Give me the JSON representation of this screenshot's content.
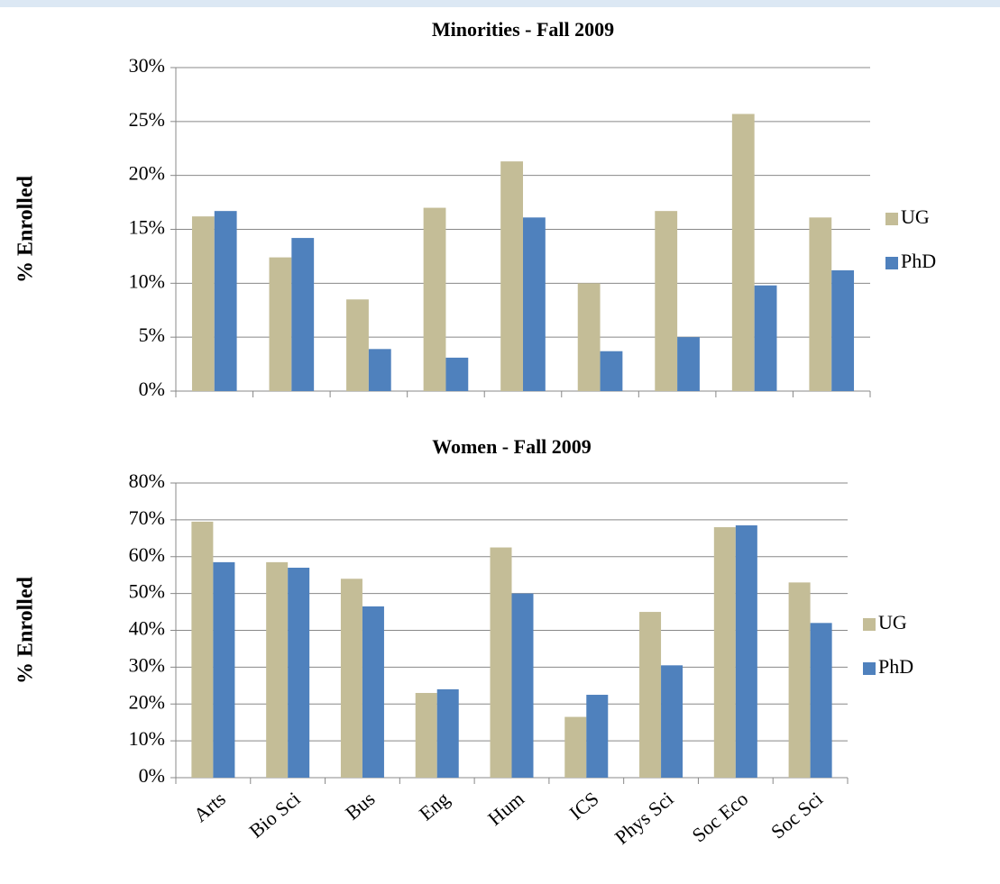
{
  "chart_data": [
    {
      "type": "bar",
      "title": "Minorities - Fall 2009",
      "y_label": "% Enrolled",
      "categories": [
        null,
        null,
        null,
        null,
        null,
        null,
        null,
        null,
        null
      ],
      "series": [
        {
          "name": "UG",
          "color": "#c4bd97",
          "values": [
            16.2,
            12.4,
            8.5,
            17,
            21.3,
            10,
            16.7,
            25.7,
            16.1
          ]
        },
        {
          "name": "PhD",
          "color": "#4f81bd",
          "values": [
            16.7,
            14.2,
            3.9,
            3.1,
            16.1,
            3.7,
            5.0,
            9.8,
            11.2
          ]
        }
      ],
      "ylim": [
        0,
        30
      ],
      "yticks": [
        {
          "value": 0,
          "label": "0%"
        },
        {
          "value": 5,
          "label": "5%"
        },
        {
          "value": 10,
          "label": "10%"
        },
        {
          "value": 15,
          "label": "15%"
        },
        {
          "value": 20,
          "label": "20%"
        },
        {
          "value": 25,
          "label": "25%"
        },
        {
          "value": 30,
          "label": "30%"
        }
      ],
      "grid": true,
      "legend": "right"
    },
    {
      "type": "bar",
      "title": "Women - Fall 2009",
      "y_label": "% Enrolled",
      "categories": [
        "Arts",
        "Bio Sci",
        "Bus",
        "Eng",
        "Hum",
        "ICS",
        "Phys Sci",
        "Soc Eco",
        "Soc Sci"
      ],
      "series": [
        {
          "name": "UG",
          "color": "#c4bd97",
          "values": [
            69.5,
            58.5,
            54,
            23,
            62.5,
            16.5,
            45,
            68,
            53
          ]
        },
        {
          "name": "PhD",
          "color": "#4f81bd",
          "values": [
            58.5,
            57,
            46.5,
            24,
            50,
            22.5,
            30.5,
            68.5,
            42
          ]
        }
      ],
      "ylim": [
        0,
        80
      ],
      "yticks": [
        {
          "value": 0,
          "label": "0%"
        },
        {
          "value": 10,
          "label": "10%"
        },
        {
          "value": 20,
          "label": "20%"
        },
        {
          "value": 30,
          "label": "30%"
        },
        {
          "value": 40,
          "label": "40%"
        },
        {
          "value": 50,
          "label": "50%"
        },
        {
          "value": 60,
          "label": "60%"
        },
        {
          "value": 70,
          "label": "70%"
        },
        {
          "value": 80,
          "label": "80%"
        }
      ],
      "grid": true,
      "legend": "right"
    }
  ]
}
